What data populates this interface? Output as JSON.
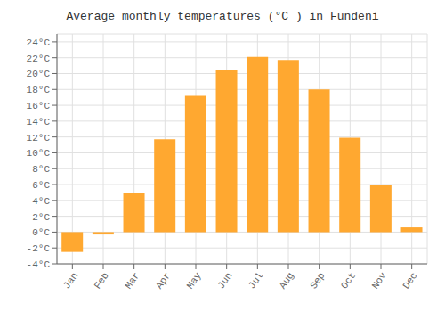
{
  "chart_data": {
    "type": "bar",
    "title": "Average monthly temperatures (°C ) in Fundeni",
    "categories": [
      "Jan",
      "Feb",
      "Mar",
      "Apr",
      "May",
      "Jun",
      "Jul",
      "Aug",
      "Sep",
      "Oct",
      "Nov",
      "Dec"
    ],
    "values": [
      -2.5,
      -0.3,
      5.0,
      11.7,
      17.2,
      20.4,
      22.1,
      21.7,
      18.0,
      11.9,
      5.9,
      0.6
    ],
    "color": "#FFA830",
    "ylim": [
      -4,
      25
    ],
    "yticks": [
      {
        "value": -4,
        "label": "-4°C"
      },
      {
        "value": -2,
        "label": "-2°C"
      },
      {
        "value": 0,
        "label": "0°C"
      },
      {
        "value": 2,
        "label": "2°C"
      },
      {
        "value": 4,
        "label": "4°C"
      },
      {
        "value": 6,
        "label": "6°C"
      },
      {
        "value": 8,
        "label": "8°C"
      },
      {
        "value": 10,
        "label": "10°C"
      },
      {
        "value": 12,
        "label": "12°C"
      },
      {
        "value": 14,
        "label": "14°C"
      },
      {
        "value": 16,
        "label": "16°C"
      },
      {
        "value": 18,
        "label": "18°C"
      },
      {
        "value": 20,
        "label": "20°C"
      },
      {
        "value": 22,
        "label": "22°C"
      },
      {
        "value": 24,
        "label": "24°C"
      }
    ],
    "grid": true
  }
}
